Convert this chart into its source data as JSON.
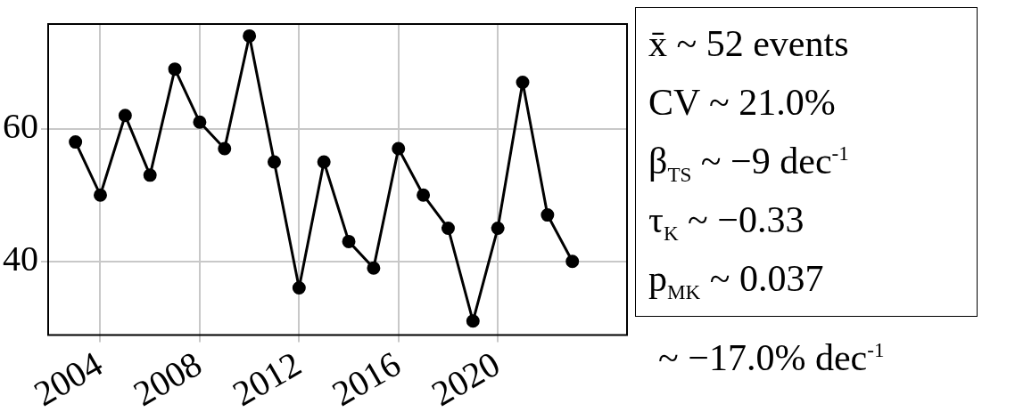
{
  "chart_data": {
    "type": "line",
    "x": [
      2003,
      2004,
      2005,
      2006,
      2007,
      2008,
      2009,
      2010,
      2011,
      2012,
      2013,
      2014,
      2015,
      2016,
      2017,
      2018,
      2019,
      2020,
      2021,
      2022,
      2023
    ],
    "values": [
      58,
      50,
      62,
      53,
      69,
      61,
      57,
      74,
      55,
      36,
      55,
      43,
      39,
      57,
      50,
      45,
      31,
      45,
      67,
      47,
      40
    ],
    "color": "#000000",
    "xlim": [
      2001.9,
      2025.2
    ],
    "ylim": [
      28.9,
      75.8
    ],
    "xticks": [
      2004,
      2008,
      2012,
      2016,
      2020
    ],
    "yticks": [
      40,
      60
    ],
    "grid": true,
    "marker": "circle",
    "line_style": "solid",
    "annotations": [
      "x̄ ~ 52 events",
      "CV ~ 21.0%",
      "β$_{TS}$ ~ −9 dec$^{-1}$",
      "τ$_{K}$ ~ −0.33",
      "p$_{MK}$ ~ 0.037",
      "~ −17.0% dec$^{-1}$"
    ]
  }
}
